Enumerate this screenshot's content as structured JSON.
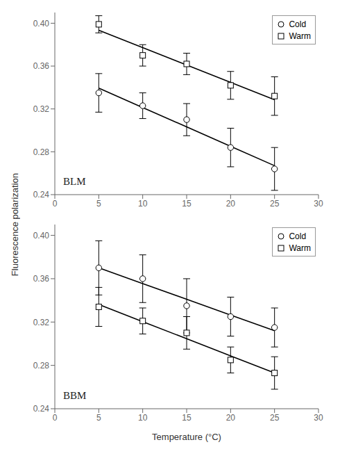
{
  "chart_data": [
    {
      "type": "scatter",
      "ylabel": "Fluorescence polarization",
      "annotations": [
        "BLM"
      ],
      "x": [
        5,
        10,
        15,
        20,
        25
      ],
      "xlim": [
        0,
        30
      ],
      "xticks": [
        0,
        5,
        10,
        15,
        20,
        25,
        30
      ],
      "ylim": [
        0.24,
        0.41
      ],
      "yticks": [
        0.24,
        0.28,
        0.32,
        0.36,
        {
          "value": 0.4,
          "label": "0.40"
        }
      ],
      "legend": "upper right",
      "series": [
        {
          "type": "line",
          "color": "black",
          "values": [
            0.3394,
            0.3213,
            0.3032,
            0.2851,
            0.267
          ]
        },
        {
          "type": "line",
          "color": "black",
          "values": [
            0.3934,
            0.3772,
            0.361,
            0.3448,
            0.3286
          ]
        },
        {
          "name": "Cold",
          "type": "scatter",
          "marker": "circle",
          "color": "black",
          "values": [
            0.335,
            0.323,
            0.31,
            0.284,
            0.264
          ],
          "yerr": [
            0.018,
            0.012,
            0.015,
            0.018,
            0.02
          ]
        },
        {
          "name": "Warm",
          "type": "scatter",
          "marker": "square",
          "color": "black",
          "values": [
            0.399,
            0.37,
            0.362,
            0.342,
            0.332
          ],
          "yerr": [
            0.008,
            0.01,
            0.01,
            0.013,
            0.018
          ]
        }
      ]
    },
    {
      "type": "scatter",
      "xlabel": "Temperature (°C)",
      "annotations": [
        "BBM"
      ],
      "x": [
        5,
        10,
        15,
        20,
        25
      ],
      "xlim": [
        0,
        30
      ],
      "xticks": [
        0,
        5,
        10,
        15,
        20,
        25,
        30
      ],
      "ylim": [
        0.24,
        0.41
      ],
      "yticks": [
        0.24,
        0.28,
        0.32,
        0.36,
        {
          "value": 0.4,
          "label": "0.40"
        }
      ],
      "legend": "upper right",
      "series": [
        {
          "type": "line",
          "color": "black",
          "values": [
            0.37,
            0.3555,
            0.341,
            0.3265,
            0.312
          ]
        },
        {
          "type": "line",
          "color": "black",
          "values": [
            0.3362,
            0.3204,
            0.3046,
            0.2888,
            0.273
          ]
        },
        {
          "name": "Cold",
          "type": "scatter",
          "marker": "circle",
          "color": "black",
          "values": [
            0.37,
            0.36,
            0.335,
            0.325,
            0.315
          ],
          "yerr": [
            0.025,
            0.022,
            0.025,
            0.018,
            0.018
          ]
        },
        {
          "name": "Warm",
          "type": "scatter",
          "marker": "square",
          "color": "black",
          "values": [
            0.334,
            0.321,
            0.31,
            0.285,
            0.273
          ],
          "yerr": [
            0.018,
            0.012,
            0.015,
            0.012,
            0.015
          ]
        }
      ]
    }
  ]
}
